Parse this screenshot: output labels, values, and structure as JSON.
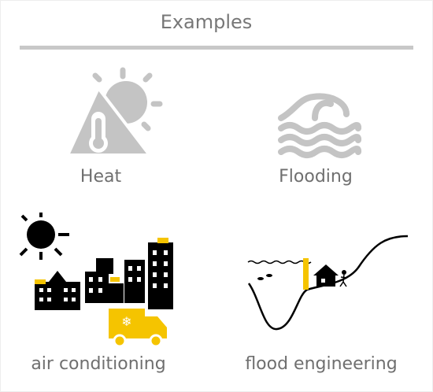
{
  "header": {
    "title": "Examples"
  },
  "items": [
    {
      "label": "Heat"
    },
    {
      "label": "Flooding"
    },
    {
      "label": "air conditioning"
    },
    {
      "label": "flood engineering"
    }
  ]
}
